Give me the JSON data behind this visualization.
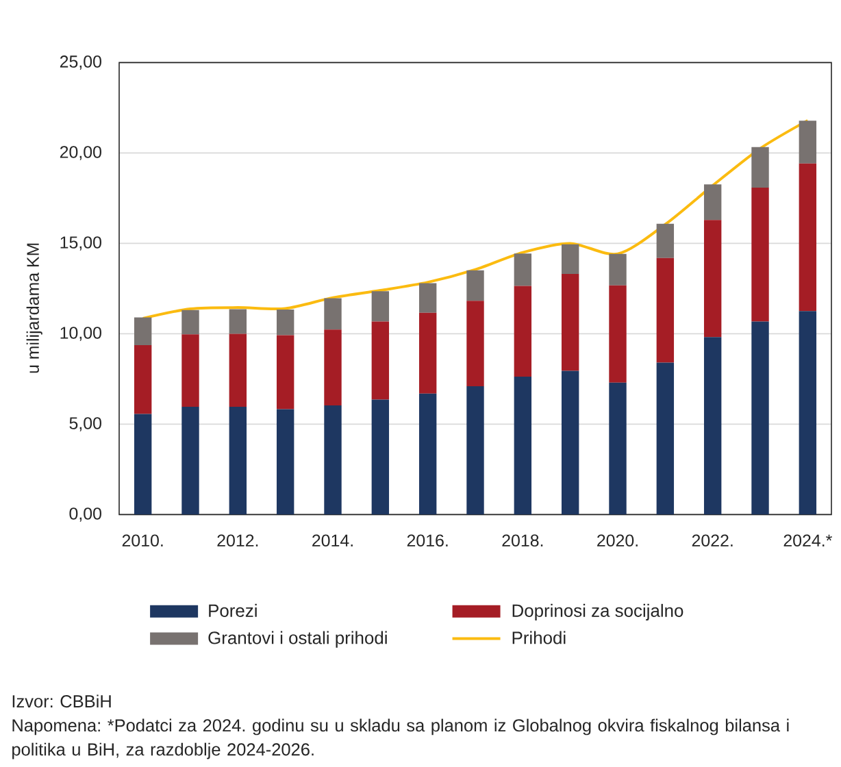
{
  "chart_data": {
    "type": "bar",
    "stacked": true,
    "ylabel": "u milijardama KM",
    "categories": [
      "2010.",
      null,
      "2012.",
      null,
      "2014.",
      null,
      "2016.",
      null,
      "2018.",
      null,
      "2020.",
      null,
      "2022.",
      null,
      "2024.*"
    ],
    "series": [
      {
        "name": "Porezi",
        "color": "#1e3761",
        "values": [
          5.56,
          5.96,
          5.96,
          5.83,
          6.04,
          6.36,
          6.69,
          7.1,
          7.63,
          7.95,
          7.3,
          8.41,
          9.82,
          10.68,
          11.26
        ]
      },
      {
        "name": "Doprinosi za socijalno",
        "color": "#a51d25",
        "values": [
          3.81,
          4.01,
          4.04,
          4.09,
          4.19,
          4.32,
          4.47,
          4.72,
          5.02,
          5.36,
          5.38,
          5.78,
          6.47,
          7.4,
          8.16
        ]
      },
      {
        "name": "Grantovi i ostali prihodi",
        "color": "#787270",
        "values": [
          1.54,
          1.34,
          1.36,
          1.42,
          1.74,
          1.67,
          1.64,
          1.69,
          1.79,
          1.64,
          1.74,
          1.9,
          1.97,
          2.25,
          2.37
        ]
      },
      {
        "name": "Prihodi",
        "type": "line",
        "color": "#fbbb10",
        "values": [
          10.85,
          11.38,
          11.45,
          11.4,
          12.0,
          12.4,
          12.85,
          13.55,
          14.5,
          15.0,
          14.42,
          16.05,
          18.2,
          20.25,
          21.8
        ]
      }
    ],
    "ylim": [
      0,
      25
    ],
    "yticks": [
      {
        "value": 0,
        "label": "0,00"
      },
      {
        "value": 5,
        "label": "5,00"
      },
      {
        "value": 10,
        "label": "10,00"
      },
      {
        "value": 15,
        "label": "15,00"
      },
      {
        "value": 20,
        "label": "20,00"
      },
      {
        "value": 25,
        "label": "25,00"
      }
    ],
    "grid": "y",
    "legend": "bottom",
    "annotations": [
      "Izvor: CBBiH",
      "Napomena: *Podatci za 2024. godinu su u skladu sa planom iz Globalnog okvira fiskalnog bilansa i politika u BiH, za razdoblje 2024-2026."
    ]
  }
}
